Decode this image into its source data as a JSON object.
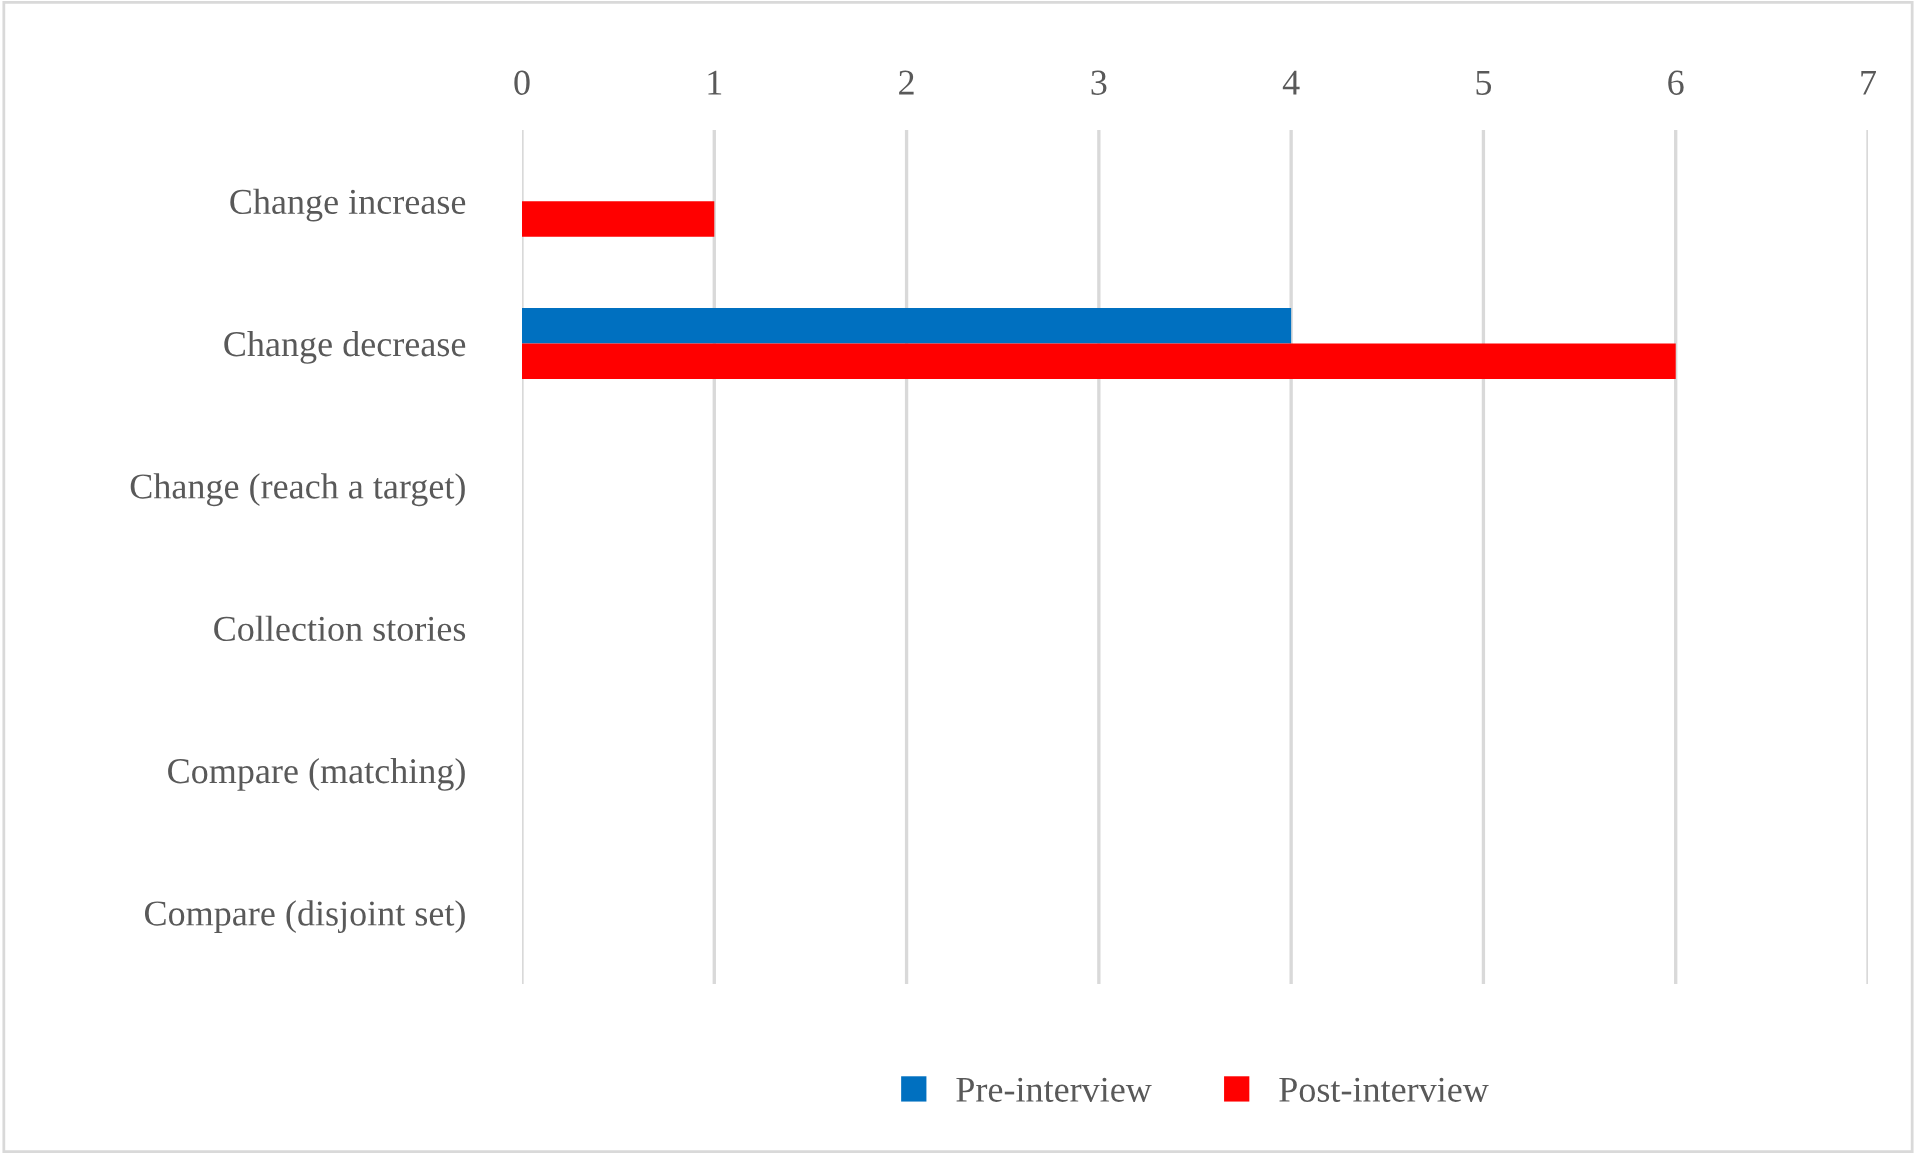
{
  "chart_data": {
    "type": "bar",
    "orientation": "horizontal",
    "categories": [
      "Change increase",
      "Change decrease",
      "Change (reach a target)",
      "Collection stories",
      "Compare (matching)",
      "Compare (disjoint set)"
    ],
    "series": [
      {
        "name": "Pre-interview",
        "color": "#0070c0",
        "values": [
          0,
          4,
          0,
          0,
          0,
          0
        ]
      },
      {
        "name": "Post-interview",
        "color": "#ff0000",
        "values": [
          1,
          6,
          0,
          0,
          0,
          0
        ]
      }
    ],
    "xlim": [
      0,
      7
    ],
    "xticks": [
      0,
      1,
      2,
      3,
      4,
      5,
      6,
      7
    ],
    "grid": "x",
    "legend": "bottom"
  }
}
